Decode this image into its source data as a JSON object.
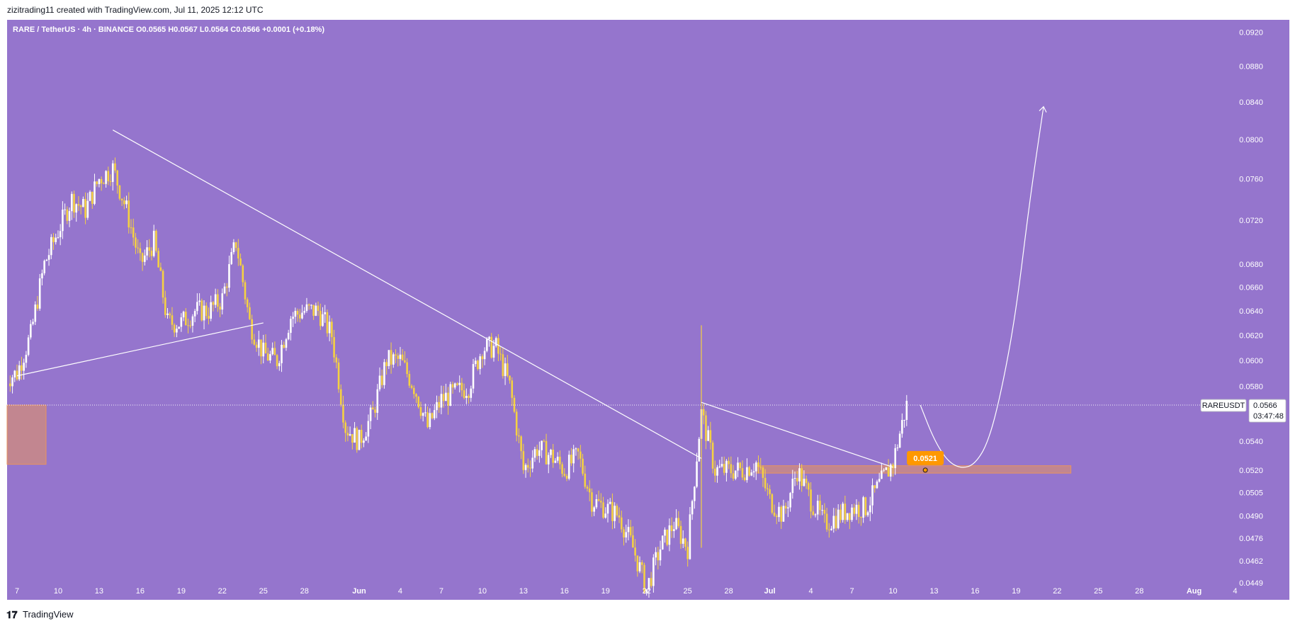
{
  "header": {
    "attribution": "zizitrading11 created with TradingView.com, Jul 11, 2025 12:12 UTC"
  },
  "footer": {
    "brand": "TradingView",
    "logo_icon": "tradingview-logo-icon"
  },
  "colors": {
    "background": "#9575cd",
    "bull": "#ffffff",
    "bear": "#f5d142",
    "zone": "#e8945f",
    "badge": "#ff9800"
  },
  "chart_data": {
    "type": "candlestick",
    "symbol_line": "RARE / TetherUS · 4h · BINANCE  O0.0565  H0.0567  L0.0564  C0.0566  +0.0001 (+0.18%)",
    "x_ticks": [
      "7",
      "10",
      "13",
      "16",
      "19",
      "22",
      "25",
      "28",
      "Jun",
      "4",
      "7",
      "10",
      "13",
      "16",
      "19",
      "22",
      "25",
      "28",
      "Jul",
      "4",
      "7",
      "10",
      "13",
      "16",
      "19",
      "22",
      "25",
      "28",
      "Aug",
      "4"
    ],
    "y_ticks": [
      "0.0920",
      "0.0880",
      "0.0840",
      "0.0800",
      "0.0760",
      "0.0720",
      "0.0680",
      "0.0660",
      "0.0640",
      "0.0620",
      "0.0600",
      "0.0580",
      "0.0540",
      "0.0520",
      "0.0505",
      "0.0490",
      "0.0476",
      "0.0462",
      "0.0449"
    ],
    "price_axis_scale": "log",
    "current_price": {
      "symbol": "RAREUSDT",
      "price": "0.0566",
      "countdown": "03:47:48"
    },
    "highlight_label": "0.0521",
    "daily_closes": [
      [
        "May 06",
        0.0585
      ],
      [
        "May 07",
        0.059
      ],
      [
        "May 08",
        0.062
      ],
      [
        "May 09",
        0.068
      ],
      [
        "May 10",
        0.071
      ],
      [
        "May 11",
        0.074
      ],
      [
        "May 12",
        0.073
      ],
      [
        "May 13",
        0.076
      ],
      [
        "May 14",
        0.077
      ],
      [
        "May 15",
        0.073
      ],
      [
        "May 16",
        0.068
      ],
      [
        "May 17",
        0.07
      ],
      [
        "May 18",
        0.063
      ],
      [
        "May 19",
        0.063
      ],
      [
        "May 20",
        0.064
      ],
      [
        "May 21",
        0.064
      ],
      [
        "May 22",
        0.065
      ],
      [
        "May 23",
        0.07
      ],
      [
        "May 24",
        0.063
      ],
      [
        "May 25",
        0.0605
      ],
      [
        "May 26",
        0.06
      ],
      [
        "May 27",
        0.0635
      ],
      [
        "May 28",
        0.064
      ],
      [
        "May 29",
        0.064
      ],
      [
        "May 30",
        0.062
      ],
      [
        "May 31",
        0.055
      ],
      [
        "Jun 01",
        0.054
      ],
      [
        "Jun 02",
        0.056
      ],
      [
        "Jun 03",
        0.06
      ],
      [
        "Jun 04",
        0.06
      ],
      [
        "Jun 05",
        0.058
      ],
      [
        "Jun 06",
        0.055
      ],
      [
        "Jun 07",
        0.057
      ],
      [
        "Jun 08",
        0.0575
      ],
      [
        "Jun 09",
        0.058
      ],
      [
        "Jun 10",
        0.061
      ],
      [
        "Jun 11",
        0.061
      ],
      [
        "Jun 12",
        0.058
      ],
      [
        "Jun 13",
        0.052
      ],
      [
        "Jun 14",
        0.0535
      ],
      [
        "Jun 15",
        0.053
      ],
      [
        "Jun 16",
        0.052
      ],
      [
        "Jun 17",
        0.053
      ],
      [
        "Jun 18",
        0.05
      ],
      [
        "Jun 19",
        0.0495
      ],
      [
        "Jun 20",
        0.049
      ],
      [
        "Jun 21",
        0.047
      ],
      [
        "Jun 22",
        0.0445
      ],
      [
        "Jun 23",
        0.047
      ],
      [
        "Jun 24",
        0.0485
      ],
      [
        "Jun 25",
        0.047
      ],
      [
        "Jun 26",
        0.056
      ],
      [
        "Jun 27",
        0.052
      ],
      [
        "Jun 28",
        0.052
      ],
      [
        "Jun 29",
        0.052
      ],
      [
        "Jun 30",
        0.0525
      ],
      [
        "Jul 01",
        0.05
      ],
      [
        "Jul 02",
        0.049
      ],
      [
        "Jul 03",
        0.052
      ],
      [
        "Jul 04",
        0.05
      ],
      [
        "Jul 05",
        0.0485
      ],
      [
        "Jul 06",
        0.049
      ],
      [
        "Jul 07",
        0.0495
      ],
      [
        "Jul 08",
        0.0495
      ],
      [
        "Jul 09",
        0.051
      ],
      [
        "Jul 10",
        0.0525
      ],
      [
        "Jul 11",
        0.0566
      ]
    ],
    "trendlines": [
      {
        "name": "descending-trendline-major",
        "from": [
          "May 14",
          0.081
        ],
        "to": [
          "Jun 26",
          0.0528
        ]
      },
      {
        "name": "ascending-support-line",
        "from": [
          "May 07",
          0.0588
        ],
        "to": [
          "May 25",
          0.063
        ]
      },
      {
        "name": "descending-trendline-minor",
        "from": [
          "Jun 26",
          0.0568
        ],
        "to": [
          "Jul 10",
          0.0522
        ]
      }
    ],
    "zones": [
      {
        "name": "support-zone-right",
        "from": "Jun 30",
        "to": "Jul 23",
        "top": 0.0523,
        "bottom": 0.0518
      },
      {
        "name": "demand-zone-left",
        "from": "May 06",
        "to": "May 08",
        "top": 0.0566,
        "bottom": 0.0524
      }
    ],
    "projection": [
      [
        "Jul 12",
        0.0566
      ],
      [
        "Jul 13",
        0.0541
      ],
      [
        "Jul 14",
        0.0526
      ],
      [
        "Jul 15",
        0.0521
      ],
      [
        "Jul 16",
        0.0524
      ],
      [
        "Jul 17",
        0.054
      ],
      [
        "Jul 18",
        0.058
      ],
      [
        "Jul 19",
        0.064
      ],
      [
        "Jul 20",
        0.074
      ],
      [
        "Jul 21",
        0.0835
      ]
    ]
  }
}
